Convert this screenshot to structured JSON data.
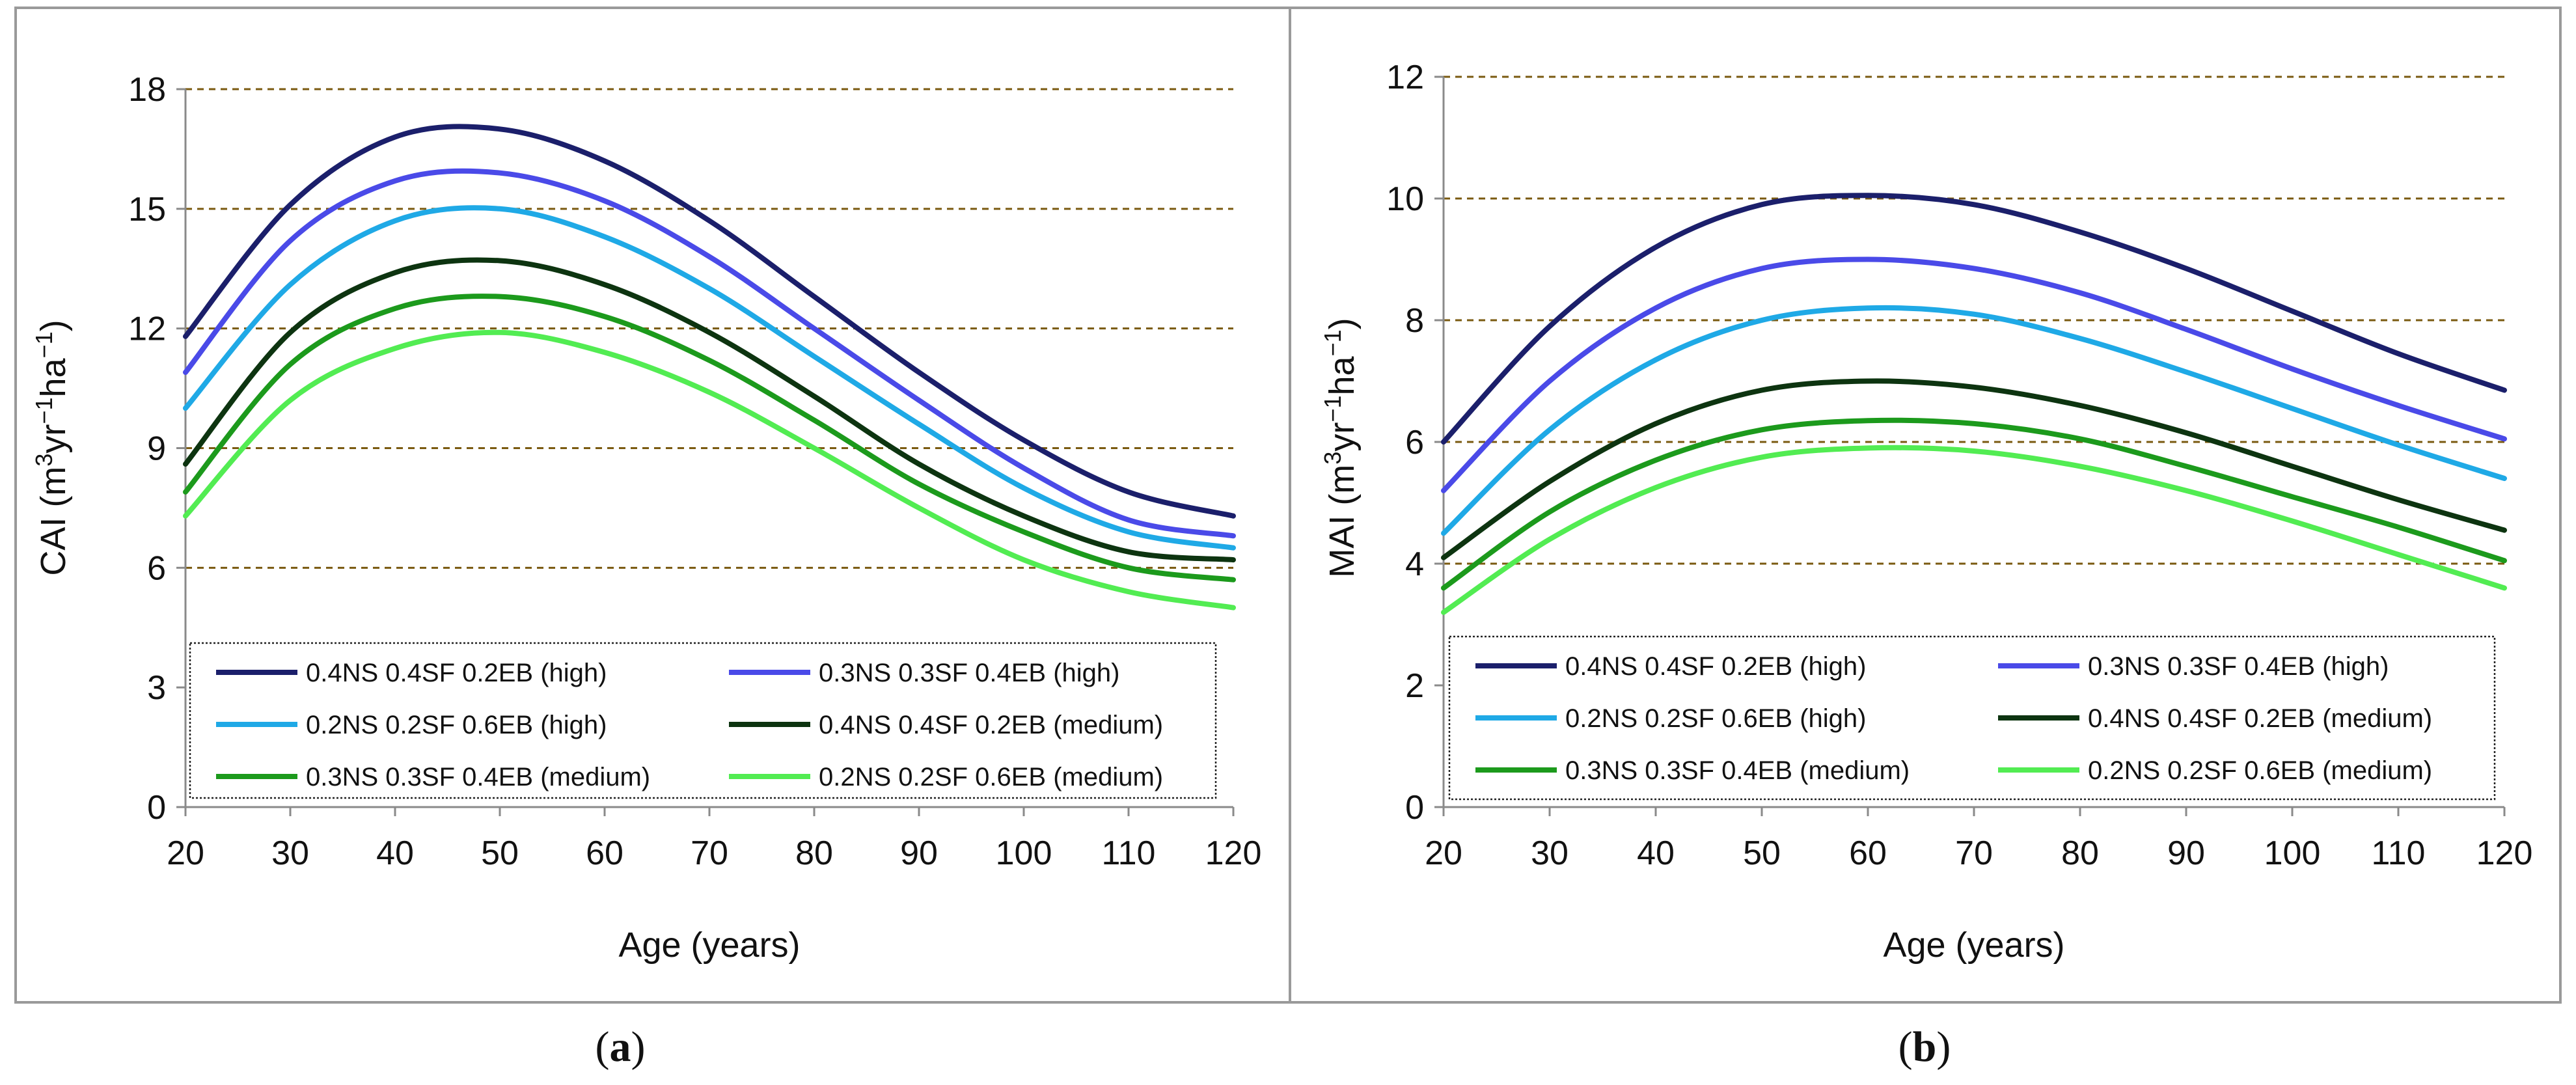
{
  "chart_data": [
    {
      "type": "line",
      "panel": "a",
      "caption": {
        "open": "(",
        "letter": "a",
        "close": ")"
      },
      "ylabel": {
        "base": "CAI (m",
        "sup1": "3",
        "mid1": "yr",
        "sup2": "−1",
        "mid2": "ha",
        "sup3": "−1",
        "end": ")"
      },
      "xlabel": "Age (years)",
      "xlim": [
        20,
        120
      ],
      "ylim": [
        0,
        18
      ],
      "xticks": [
        20,
        30,
        40,
        50,
        60,
        70,
        80,
        90,
        100,
        110,
        120
      ],
      "yticks": [
        0,
        3,
        6,
        9,
        12,
        15,
        18
      ],
      "gridlines": [
        6,
        9,
        12,
        15,
        18
      ],
      "legend_position": "bottom",
      "x": [
        20,
        30,
        40,
        50,
        60,
        70,
        80,
        90,
        100,
        110,
        120
      ],
      "series": [
        {
          "name": "0.4NS 0.4SF 0.2EB (high)",
          "color": "#1b1f6b",
          "values": [
            11.8,
            15.1,
            16.8,
            17.0,
            16.2,
            14.7,
            12.8,
            10.9,
            9.2,
            7.9,
            7.3
          ]
        },
        {
          "name": "0.3NS 0.3SF 0.4EB (high)",
          "color": "#4a4ae8",
          "values": [
            10.9,
            14.2,
            15.7,
            15.9,
            15.2,
            13.8,
            12.0,
            10.2,
            8.5,
            7.2,
            6.8
          ]
        },
        {
          "name": "0.2NS 0.2SF 0.6EB (high)",
          "color": "#1fa9e6",
          "values": [
            10.0,
            13.1,
            14.7,
            15.0,
            14.3,
            13.0,
            11.3,
            9.6,
            8.0,
            6.9,
            6.5
          ]
        },
        {
          "name": "0.4NS 0.4SF 0.2EB (medium)",
          "color": "#0d3410",
          "values": [
            8.6,
            11.9,
            13.4,
            13.7,
            13.1,
            11.9,
            10.3,
            8.6,
            7.3,
            6.4,
            6.2
          ]
        },
        {
          "name": "0.3NS 0.3SF 0.4EB (medium)",
          "color": "#1c9a1c",
          "values": [
            7.9,
            11.1,
            12.5,
            12.8,
            12.3,
            11.2,
            9.7,
            8.1,
            6.9,
            6.0,
            5.7
          ]
        },
        {
          "name": "0.2NS 0.2SF 0.6EB (medium)",
          "color": "#52ec52",
          "values": [
            7.3,
            10.2,
            11.5,
            11.9,
            11.4,
            10.4,
            9.0,
            7.5,
            6.2,
            5.4,
            5.0
          ]
        }
      ]
    },
    {
      "type": "line",
      "panel": "b",
      "caption": {
        "open": "(",
        "letter": "b",
        "close": ")"
      },
      "ylabel": {
        "base": "MAI  (m",
        "sup1": "3",
        "mid1": "yr",
        "sup2": "−1",
        "mid2": "ha",
        "sup3": "−1",
        "end": ")"
      },
      "xlabel": "Age (years)",
      "xlim": [
        20,
        120
      ],
      "ylim": [
        0,
        12
      ],
      "xticks": [
        20,
        30,
        40,
        50,
        60,
        70,
        80,
        90,
        100,
        110,
        120
      ],
      "yticks": [
        0,
        2,
        4,
        6,
        8,
        10,
        12
      ],
      "gridlines": [
        4,
        6,
        8,
        10,
        12
      ],
      "legend_position": "bottom",
      "x": [
        20,
        30,
        40,
        50,
        60,
        70,
        80,
        90,
        100,
        110,
        120
      ],
      "series": [
        {
          "name": "0.4NS 0.4SF 0.2EB (high)",
          "color": "#1b1f6b",
          "values": [
            6.0,
            7.9,
            9.2,
            9.9,
            10.05,
            9.9,
            9.45,
            8.85,
            8.15,
            7.45,
            6.85
          ]
        },
        {
          "name": "0.3NS 0.3SF 0.4EB (high)",
          "color": "#4a4ae8",
          "values": [
            5.2,
            7.0,
            8.2,
            8.85,
            9.0,
            8.85,
            8.45,
            7.85,
            7.2,
            6.6,
            6.05
          ]
        },
        {
          "name": "0.2NS 0.2SF 0.6EB (high)",
          "color": "#1fa9e6",
          "values": [
            4.5,
            6.2,
            7.35,
            8.0,
            8.2,
            8.1,
            7.7,
            7.15,
            6.55,
            5.95,
            5.4
          ]
        },
        {
          "name": "0.4NS 0.4SF 0.2EB (medium)",
          "color": "#0d3410",
          "values": [
            4.1,
            5.35,
            6.3,
            6.85,
            7.0,
            6.9,
            6.6,
            6.15,
            5.6,
            5.05,
            4.55
          ]
        },
        {
          "name": "0.3NS 0.3SF 0.4EB (medium)",
          "color": "#1c9a1c",
          "values": [
            3.6,
            4.85,
            5.7,
            6.2,
            6.35,
            6.3,
            6.05,
            5.6,
            5.1,
            4.6,
            4.05
          ]
        },
        {
          "name": "0.2NS 0.2SF 0.6EB (medium)",
          "color": "#52ec52",
          "values": [
            3.2,
            4.4,
            5.25,
            5.75,
            5.9,
            5.85,
            5.6,
            5.2,
            4.7,
            4.15,
            3.6
          ]
        }
      ]
    }
  ]
}
